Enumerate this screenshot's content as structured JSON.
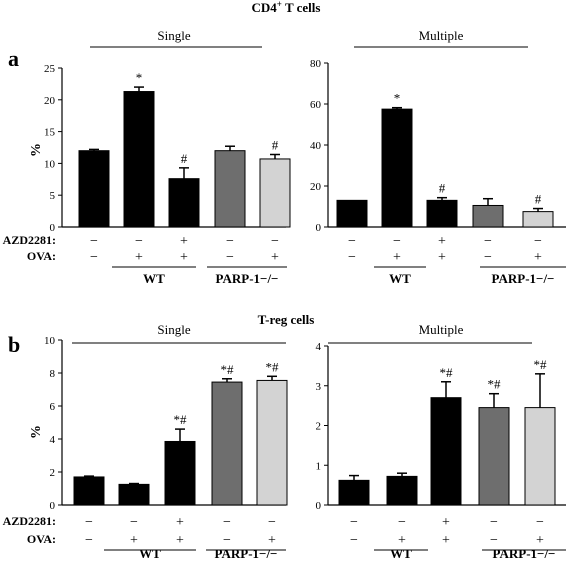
{
  "figure": {
    "panel_a": {
      "letter": "a",
      "title": "CD4",
      "title_sup": "+",
      "title_rest": " T cells"
    },
    "panel_b": {
      "letter": "b",
      "title": "T-reg cells"
    },
    "ylabel": "%",
    "row_labels": [
      "AZD2281:",
      "OVA:"
    ],
    "group_labels": [
      "WT",
      "PARP-1−/−"
    ]
  },
  "colors": {
    "WT": "#000000",
    "PARP-1 AZD- OVA-": "#6e6e6e",
    "PARP-1 AZD- OVA+": "#d3d3d3"
  },
  "chart_data": [
    {
      "type": "bar",
      "title": "Single",
      "ylabel": "%",
      "ylim": [
        0,
        25
      ],
      "yticks": [
        0,
        5,
        10,
        15,
        20,
        25
      ],
      "treatments": {
        "AZD2281": [
          "−",
          "−",
          "+",
          "−",
          "−"
        ],
        "OVA": [
          "−",
          "+",
          "+",
          "−",
          "+"
        ]
      },
      "groups": [
        "WT",
        "WT",
        "WT",
        "PARP-1−/−",
        "PARP-1−/−"
      ],
      "values": [
        12.0,
        21.3,
        7.6,
        12.0,
        10.7
      ],
      "errors": [
        0.2,
        0.7,
        1.7,
        0.7,
        0.7
      ],
      "annotations": [
        "",
        "*",
        "#",
        "",
        "#"
      ],
      "colors": [
        "#000000",
        "#000000",
        "#000000",
        "#6e6e6e",
        "#d3d3d3"
      ]
    },
    {
      "type": "bar",
      "title": "Multiple",
      "ylabel": "",
      "ylim": [
        0,
        80
      ],
      "yticks": [
        0,
        20,
        40,
        60,
        80
      ],
      "treatments": {
        "AZD2281": [
          "−",
          "−",
          "+",
          "−",
          "−"
        ],
        "OVA": [
          "−",
          "+",
          "+",
          "−",
          "+"
        ]
      },
      "groups": [
        "WT",
        "WT",
        "WT",
        "PARP-1−/−",
        "PARP-1−/−"
      ],
      "values": [
        13,
        57.5,
        13,
        10.5,
        7.5
      ],
      "errors": [
        0,
        0.7,
        1.3,
        3.3,
        1.5
      ],
      "annotations": [
        "",
        "*",
        "#",
        "",
        "#"
      ],
      "colors": [
        "#000000",
        "#000000",
        "#000000",
        "#6e6e6e",
        "#d3d3d3"
      ]
    },
    {
      "type": "bar",
      "title": "Single",
      "ylabel": "%",
      "ylim": [
        0,
        10
      ],
      "yticks": [
        0,
        2,
        4,
        6,
        8,
        10
      ],
      "treatments": {
        "AZD2281": [
          "−",
          "−",
          "+",
          "−",
          "−"
        ],
        "OVA": [
          "−",
          "+",
          "+",
          "−",
          "+"
        ]
      },
      "groups": [
        "WT",
        "WT",
        "WT",
        "PARP-1−/−",
        "PARP-1−/−"
      ],
      "values": [
        1.7,
        1.25,
        3.85,
        7.45,
        7.55
      ],
      "errors": [
        0.05,
        0.05,
        0.75,
        0.2,
        0.25
      ],
      "annotations": [
        "",
        "",
        "*#",
        "*#",
        "*#"
      ],
      "colors": [
        "#000000",
        "#000000",
        "#000000",
        "#6e6e6e",
        "#d3d3d3"
      ]
    },
    {
      "type": "bar",
      "title": "Multiple",
      "ylabel": "",
      "ylim": [
        0,
        4
      ],
      "yticks": [
        0,
        1,
        2,
        3,
        4
      ],
      "treatments": {
        "AZD2281": [
          "−",
          "−",
          "+",
          "−",
          "−"
        ],
        "OVA": [
          "−",
          "+",
          "+",
          "−",
          "+"
        ]
      },
      "groups": [
        "WT",
        "WT",
        "WT",
        "PARP-1−/−",
        "PARP-1−/−"
      ],
      "values": [
        0.62,
        0.72,
        2.7,
        2.45,
        2.45
      ],
      "errors": [
        0.12,
        0.08,
        0.4,
        0.35,
        0.85
      ],
      "annotations": [
        "",
        "",
        "*#",
        "*#",
        "*#"
      ],
      "colors": [
        "#000000",
        "#000000",
        "#000000",
        "#6e6e6e",
        "#d3d3d3"
      ]
    }
  ]
}
